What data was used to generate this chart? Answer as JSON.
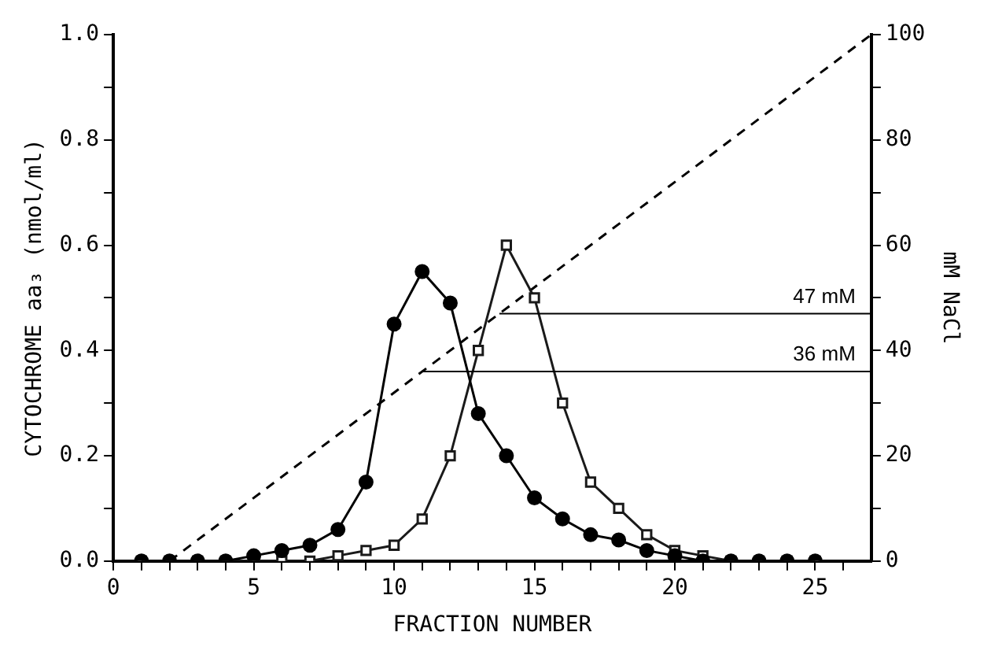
{
  "chart_data": {
    "type": "line",
    "xlabel": "FRACTION NUMBER",
    "ylabel": "CYTOCHROME aa₃ (nmol/ml)",
    "y2label": "mM NaCl",
    "xlim": [
      0,
      27
    ],
    "xticks": [
      0,
      {
        "value": 1,
        "label": null
      },
      {
        "value": 2,
        "label": null
      },
      {
        "value": 3,
        "label": null
      },
      {
        "value": 4,
        "label": null
      },
      5,
      {
        "value": 6,
        "label": null
      },
      {
        "value": 7,
        "label": null
      },
      {
        "value": 8,
        "label": null
      },
      {
        "value": 9,
        "label": null
      },
      10,
      {
        "value": 11,
        "label": null
      },
      {
        "value": 12,
        "label": null
      },
      {
        "value": 13,
        "label": null
      },
      {
        "value": 14,
        "label": null
      },
      15,
      {
        "value": 16,
        "label": null
      },
      {
        "value": 17,
        "label": null
      },
      {
        "value": 18,
        "label": null
      },
      {
        "value": 19,
        "label": null
      },
      20,
      {
        "value": 21,
        "label": null
      },
      {
        "value": 22,
        "label": null
      },
      {
        "value": 23,
        "label": null
      },
      {
        "value": 24,
        "label": null
      },
      25,
      {
        "value": 26,
        "label": null
      }
    ],
    "ylim": [
      0,
      1
    ],
    "yticks": [
      {
        "value": 0,
        "label": "0.0"
      },
      {
        "value": 0.1,
        "label": null
      },
      {
        "value": 0.2,
        "label": "0.2"
      },
      {
        "value": 0.3,
        "label": null
      },
      {
        "value": 0.4,
        "label": "0.4"
      },
      {
        "value": 0.5,
        "label": null
      },
      {
        "value": 0.6,
        "label": "0.6"
      },
      {
        "value": 0.7,
        "label": null
      },
      {
        "value": 0.8,
        "label": "0.8"
      },
      {
        "value": 0.9,
        "label": null
      },
      {
        "value": 1,
        "label": "1.0"
      }
    ],
    "y2lim": [
      0,
      100
    ],
    "y2ticks": [
      0,
      {
        "value": 10,
        "label": null
      },
      20,
      {
        "value": 30,
        "label": null
      },
      40,
      {
        "value": 50,
        "label": null
      },
      60,
      {
        "value": 70,
        "label": null
      },
      80,
      {
        "value": 90,
        "label": null
      },
      100
    ],
    "grid": false,
    "legend": false,
    "series": [
      {
        "color": "#000000",
        "marker": "circle",
        "line_style": "solid",
        "x": [
          1,
          2,
          3,
          4,
          5,
          6,
          7,
          8,
          9,
          10,
          11,
          12,
          13,
          14,
          15,
          16,
          17,
          18,
          19,
          20,
          21,
          22,
          23,
          24,
          25
        ],
        "values": [
          0,
          0,
          0,
          0,
          0.01,
          0.02,
          0.03,
          0.06,
          0.15,
          0.45,
          0.55,
          0.49,
          0.28,
          0.2,
          0.12,
          0.08,
          0.05,
          0.04,
          0.02,
          0.01,
          0,
          0,
          0,
          0,
          0
        ]
      },
      {
        "color": "#1a1a1a",
        "marker": "square",
        "line_style": "solid",
        "x": [
          1,
          2,
          3,
          4,
          5,
          6,
          7,
          8,
          9,
          10,
          11,
          12,
          13,
          14,
          15,
          16,
          17,
          18,
          19,
          20,
          21,
          22,
          23,
          24,
          25
        ],
        "values": [
          0,
          0,
          0,
          0,
          0,
          0,
          0,
          0.01,
          0.02,
          0.03,
          0.08,
          0.2,
          0.4,
          0.6,
          0.5,
          0.3,
          0.15,
          0.1,
          0.05,
          0.02,
          0.01,
          0,
          0,
          0,
          0
        ]
      },
      {
        "color": "#000000",
        "marker": "none",
        "line_style": "dashed",
        "axis": "y2",
        "x": [
          2,
          27
        ],
        "values": [
          0,
          100
        ]
      }
    ],
    "ref_lines": [
      {
        "axis": "y2",
        "value": 47,
        "label": "47 mM"
      },
      {
        "axis": "y2",
        "value": 36,
        "label": "36 mM"
      }
    ]
  }
}
